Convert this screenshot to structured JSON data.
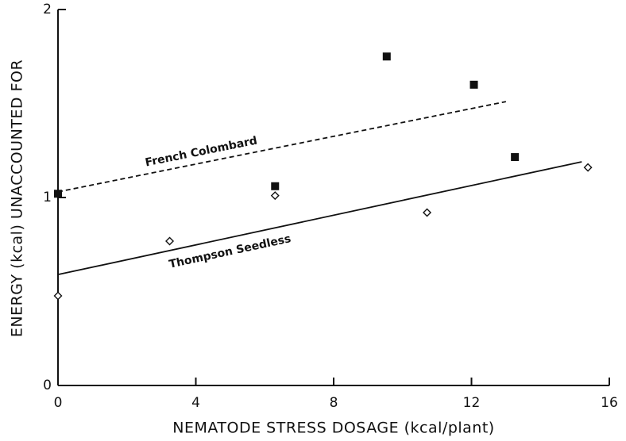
{
  "chart_data": {
    "type": "scatter",
    "x_label": "NEMATODE STRESS DOSAGE (kcal/plant)",
    "y_label": "ENERGY (kcal) UNACCOUNTED FOR",
    "xlim": [
      0,
      16
    ],
    "xticks": [
      0,
      4,
      8,
      12,
      16
    ],
    "ylim": [
      0,
      2
    ],
    "yticks": [
      0,
      1,
      2
    ],
    "series": [
      {
        "name": "French Colombard",
        "marker": "square",
        "color": "#111111",
        "x": [
          0,
          6.3,
          9.54,
          12.07,
          13.26
        ],
        "values": [
          1.02,
          1.06,
          1.75,
          1.6,
          1.215
        ],
        "fit": {
          "style": "dashed",
          "x": [
            0,
            13
          ],
          "values": [
            1.03,
            1.51
          ]
        }
      },
      {
        "name": "Thompson Seedless",
        "marker": "diamond",
        "color": "#111111",
        "x": [
          0,
          3.24,
          6.3,
          10.71,
          15.38
        ],
        "values": [
          0.477,
          0.768,
          1.01,
          0.92,
          1.16
        ],
        "fit": {
          "style": "solid",
          "x": [
            0,
            15.2
          ],
          "values": [
            0.59,
            1.19
          ]
        }
      }
    ]
  }
}
